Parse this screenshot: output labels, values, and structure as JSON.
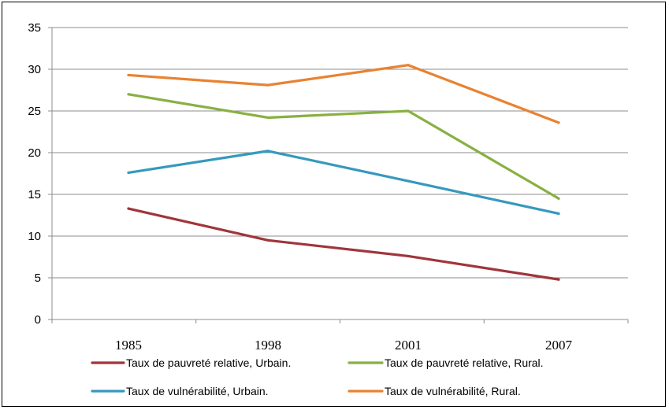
{
  "chart_data": {
    "type": "line",
    "title": "",
    "xlabel": "",
    "ylabel": "",
    "categories": [
      "1985",
      "1998",
      "2001",
      "2007"
    ],
    "ylim": [
      0,
      35
    ],
    "yticks": [
      0,
      5,
      10,
      15,
      20,
      25,
      30,
      35
    ],
    "grid": true,
    "legend_position": "bottom",
    "series": [
      {
        "name": "Taux de pauvreté relative, Urbain.",
        "color": "#a0353a",
        "values": [
          13.3,
          9.5,
          7.6,
          4.8
        ]
      },
      {
        "name": "Taux de pauvreté relative, Rural.",
        "color": "#88b043",
        "values": [
          27.0,
          24.2,
          25.0,
          14.5
        ]
      },
      {
        "name": "Taux de vulnérabilité, Urbain.",
        "color": "#3699bd",
        "values": [
          17.6,
          20.2,
          16.6,
          12.7
        ]
      },
      {
        "name": "Taux de vulnérabilité, Rural.",
        "color": "#e98231",
        "values": [
          29.3,
          28.1,
          30.5,
          23.6
        ]
      }
    ]
  }
}
